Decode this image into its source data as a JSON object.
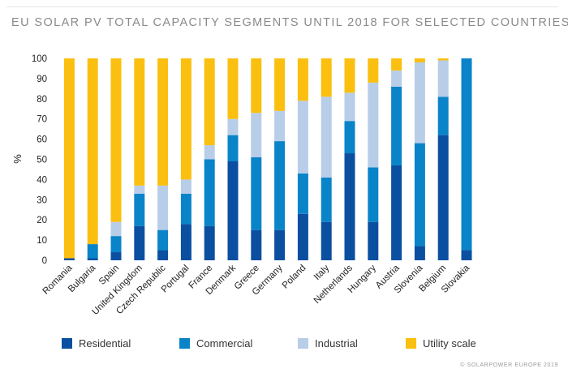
{
  "title": "EU SOLAR PV TOTAL CAPACITY SEGMENTS UNTIL 2018 FOR SELECTED COUNTRIES",
  "credit": "© SOLARPOWER EUROPE 2019",
  "chart_data": {
    "type": "bar",
    "stacked": true,
    "title": "EU SOLAR PV TOTAL CAPACITY SEGMENTS UNTIL 2018 FOR SELECTED COUNTRIES",
    "xlabel": "",
    "ylabel": "%",
    "ylim": [
      0,
      100
    ],
    "yticks": [
      0,
      10,
      20,
      30,
      40,
      50,
      60,
      70,
      80,
      90,
      100
    ],
    "grid": false,
    "legend_position": "bottom",
    "categories": [
      "Romania",
      "Bulgaria",
      "Spain",
      "United Kingdom",
      "Czech Republic",
      "Portugal",
      "France",
      "Denmark",
      "Greece",
      "Germany",
      "Poland",
      "Italy",
      "Netherlands",
      "Hungary",
      "Austria",
      "Slovenia",
      "Belgium",
      "Slovakia"
    ],
    "series": [
      {
        "name": "Residential",
        "color": "#0b4fa0",
        "values": [
          1,
          1,
          4,
          17,
          5,
          18,
          17,
          49,
          15,
          15,
          23,
          19,
          53,
          19,
          47,
          7,
          62,
          5
        ]
      },
      {
        "name": "Commercial",
        "color": "#0a84c8",
        "values": [
          0,
          7,
          8,
          16,
          10,
          15,
          33,
          13,
          36,
          44,
          20,
          22,
          16,
          27,
          39,
          51,
          19,
          95
        ]
      },
      {
        "name": "Industrial",
        "color": "#b8cde8",
        "values": [
          0,
          0,
          7,
          4,
          22,
          7,
          7,
          8,
          22,
          15,
          36,
          40,
          14,
          42,
          8,
          40,
          18,
          0
        ]
      },
      {
        "name": "Utility scale",
        "color": "#fbbf10",
        "values": [
          99,
          92,
          81,
          63,
          63,
          60,
          43,
          30,
          27,
          26,
          21,
          19,
          17,
          12,
          6,
          2,
          1,
          0
        ]
      }
    ]
  }
}
